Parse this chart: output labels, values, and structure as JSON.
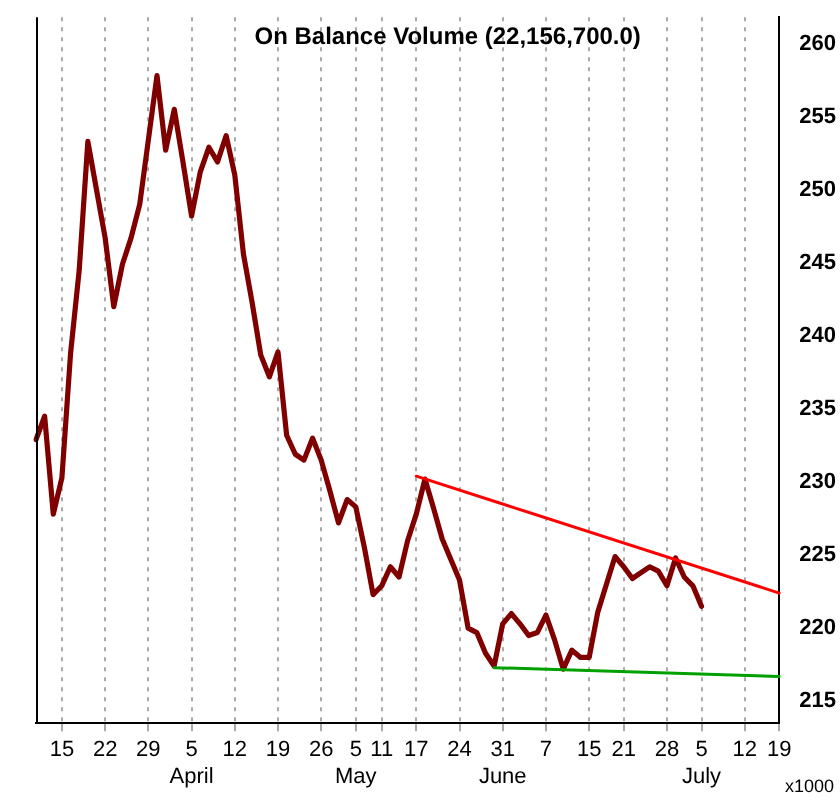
{
  "chart_data": {
    "type": "line",
    "title": "On Balance Volume (22,156,700.0)",
    "ylabel": "x1000",
    "categories": [
      null,
      null,
      null,
      "15",
      null,
      null,
      null,
      null,
      "22",
      null,
      null,
      null,
      null,
      "29",
      null,
      null,
      null,
      null,
      "5\nApril",
      null,
      null,
      null,
      null,
      "12",
      null,
      null,
      null,
      null,
      "19",
      null,
      null,
      null,
      null,
      "26",
      null,
      null,
      null,
      "5\nMay",
      null,
      null,
      "11",
      null,
      null,
      null,
      "17",
      null,
      null,
      null,
      null,
      "24",
      null,
      null,
      null,
      null,
      "31\nJune",
      null,
      null,
      null,
      null,
      "7",
      null,
      null,
      null,
      null,
      "15",
      null,
      null,
      null,
      "21",
      null,
      null,
      null,
      null,
      "28",
      null,
      null,
      null,
      "5\nJuly",
      null,
      null,
      null,
      null,
      "12",
      null,
      null,
      null,
      "19"
    ],
    "series": [
      {
        "color": "#800000",
        "values": [
          232.9,
          234.5,
          227.8,
          230.3,
          238.8,
          244.5,
          253.3,
          250.0,
          246.7,
          242.0,
          244.9,
          246.7,
          249.0,
          253.4,
          257.8,
          252.7,
          255.5,
          251.9,
          248.2,
          251.2,
          252.9,
          251.9,
          253.7,
          251.0,
          245.6,
          242.3,
          238.7,
          237.2,
          238.9,
          233.2,
          231.9,
          231.5,
          233.0,
          231.5,
          229.4,
          227.2,
          228.8,
          228.3,
          225.5,
          222.3,
          222.9,
          224.2,
          223.5,
          226.0,
          227.8,
          230.2,
          228.2,
          226.1,
          224.7,
          223.3,
          220.0,
          219.7,
          218.3,
          217.4,
          220.3,
          221.0,
          220.3,
          219.5,
          219.7,
          220.9,
          219.2,
          217.2,
          218.5,
          218.0,
          218.0,
          221.1,
          223.0,
          224.9,
          224.2,
          223.4,
          223.8,
          224.2,
          223.9,
          222.9,
          224.8,
          223.5,
          222.9,
          221.5,
          null,
          null,
          null,
          null,
          null,
          null,
          null,
          null,
          null
        ]
      },
      {
        "type": "line",
        "color": "#ff0000",
        "values": [
          null,
          null,
          null,
          null,
          null,
          null,
          null,
          null,
          null,
          null,
          null,
          null,
          null,
          null,
          null,
          null,
          null,
          null,
          null,
          null,
          null,
          null,
          null,
          null,
          null,
          null,
          null,
          null,
          null,
          null,
          null,
          null,
          null,
          null,
          null,
          null,
          null,
          null,
          null,
          null,
          null,
          null,
          null,
          null,
          230.4,
          null,
          null,
          null,
          null,
          null,
          null,
          null,
          null,
          null,
          null,
          null,
          null,
          null,
          null,
          null,
          null,
          null,
          null,
          null,
          null,
          null,
          null,
          null,
          null,
          null,
          null,
          null,
          null,
          null,
          null,
          null,
          null,
          null,
          null,
          null,
          null,
          null,
          null,
          null,
          null,
          null,
          222.4
        ]
      },
      {
        "type": "line",
        "color": "#00a000",
        "values": [
          null,
          null,
          null,
          null,
          null,
          null,
          null,
          null,
          null,
          null,
          null,
          null,
          null,
          null,
          null,
          null,
          null,
          null,
          null,
          null,
          null,
          null,
          null,
          null,
          null,
          null,
          null,
          null,
          null,
          null,
          null,
          null,
          null,
          null,
          null,
          null,
          null,
          null,
          null,
          null,
          null,
          null,
          null,
          null,
          null,
          null,
          null,
          null,
          null,
          null,
          null,
          null,
          null,
          217.3,
          null,
          null,
          null,
          null,
          null,
          null,
          null,
          null,
          null,
          null,
          null,
          null,
          null,
          null,
          null,
          null,
          null,
          null,
          null,
          null,
          null,
          null,
          null,
          null,
          null,
          null,
          null,
          null,
          null,
          null,
          null,
          null,
          216.7
        ]
      }
    ],
    "ylim": [
      213.5,
      261.8
    ],
    "yticks": [
      215,
      220,
      225,
      230,
      235,
      240,
      245,
      250,
      255,
      260
    ],
    "grid": "x",
    "legend": false,
    "marker": "none",
    "line_style": "solid"
  }
}
